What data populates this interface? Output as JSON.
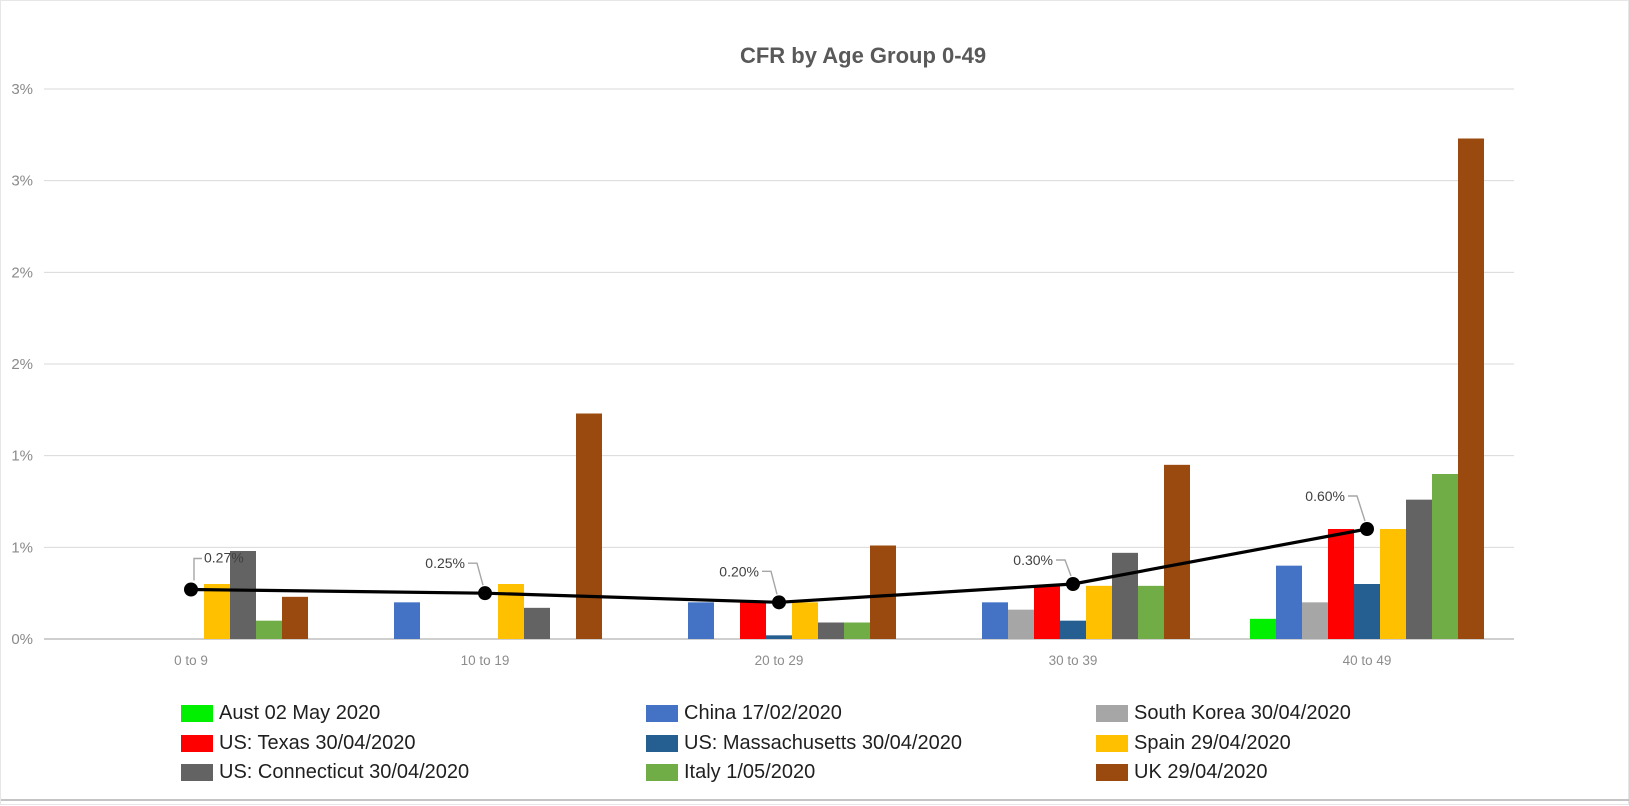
{
  "chart_data": {
    "type": "bar",
    "title": "CFR by Age Group 0-49",
    "categories": [
      "0 to 9",
      "10 to 19",
      "20 to 29",
      "30 to 39",
      "40 to 49"
    ],
    "series": [
      {
        "name": "Aust 02 May 2020",
        "color": "#00F000",
        "values": [
          0,
          0,
          0,
          0,
          0.11
        ]
      },
      {
        "name": "China 17/02/2020",
        "color": "#4472C4",
        "values": [
          0,
          0.2,
          0.2,
          0.2,
          0.4
        ]
      },
      {
        "name": "South Korea 30/04/2020",
        "color": "#A6A6A6",
        "values": [
          0,
          0,
          0,
          0.16,
          0.2
        ]
      },
      {
        "name": "US: Texas 30/04/2020",
        "color": "#FF0000",
        "values": [
          0,
          0,
          0.2,
          0.29,
          0.6
        ]
      },
      {
        "name": "US: Massachusetts 30/04/2020",
        "color": "#255E91",
        "values": [
          0,
          0,
          0.02,
          0.1,
          0.3
        ]
      },
      {
        "name": "Spain 29/04/2020",
        "color": "#FFC000",
        "values": [
          0.3,
          0.3,
          0.2,
          0.29,
          0.6
        ]
      },
      {
        "name": "US: Connecticut 30/04/2020",
        "color": "#636363",
        "values": [
          0.48,
          0.17,
          0.09,
          0.47,
          0.76
        ]
      },
      {
        "name": "Italy 1/05/2020",
        "color": "#70AD47",
        "values": [
          0.1,
          0,
          0.09,
          0.29,
          0.9
        ]
      },
      {
        "name": "UK 29/04/2020",
        "color": "#9A4A0E",
        "values": [
          0.23,
          1.23,
          0.51,
          0.95,
          2.73
        ]
      }
    ],
    "line_series": {
      "color": "#000000",
      "values": [
        0.27,
        0.25,
        0.2,
        0.3,
        0.6
      ],
      "labels": [
        "0.27%",
        "0.25%",
        "0.20%",
        "0.30%",
        "0.60%"
      ]
    },
    "ylim": [
      0,
      3
    ],
    "ytick_step_pct": 0.5,
    "ytick_labels_top_to_bottom": [
      "3%",
      "3%",
      "2%",
      "2%",
      "1%",
      "1%",
      "0%"
    ],
    "grid": true,
    "legend_position": "bottom"
  }
}
